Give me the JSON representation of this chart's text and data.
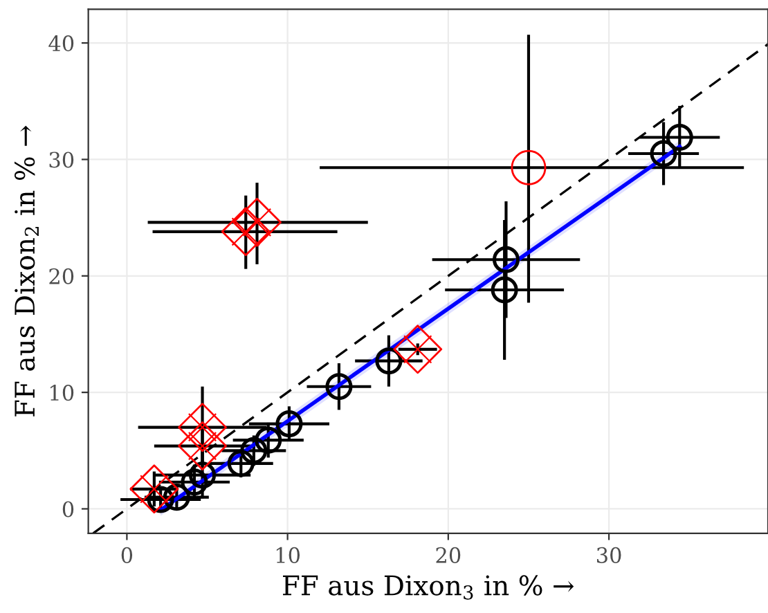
{
  "chart_data": {
    "type": "scatter",
    "xlabel": "FF aus Dixon$_{3}$ in % →",
    "ylabel": "FF aus Dixon$_{2}$ in % →",
    "xlim": [
      -2.4,
      39.9
    ],
    "ylim": [
      -2.1,
      42.9
    ],
    "xticks": [
      0,
      10,
      20,
      30
    ],
    "yticks": [
      0,
      10,
      20,
      30,
      40
    ],
    "grid": true,
    "legend": false,
    "series": [
      {
        "type": "line",
        "color": "#000000",
        "line_style": "dashed",
        "marker": "none",
        "x": [
          -2.1,
          39.9
        ],
        "values": [
          -2.1,
          39.9
        ]
      },
      {
        "type": "line",
        "color": "#0000ff",
        "line_style": "solid",
        "marker": "none",
        "x": [
          2.1,
          34.4
        ],
        "values": [
          -0.1,
          31.1
        ],
        "lower": [
          -0.6,
          30.6
        ],
        "upper": [
          0.4,
          31.6
        ]
      },
      {
        "color": "#000000",
        "marker": "circle",
        "x": [
          34.4,
          33.4,
          23.6,
          23.5,
          16.3,
          13.2,
          10.1,
          8.8,
          7.9,
          7.1,
          4.7,
          4.2,
          3.1,
          2.1
        ],
        "values": [
          31.9,
          30.5,
          21.4,
          18.8,
          12.7,
          10.5,
          7.3,
          5.9,
          5.0,
          3.9,
          2.9,
          2.3,
          1.0,
          0.8
        ],
        "xerrors": [
          2.5,
          2.2,
          4.6,
          3.7,
          2.1,
          2,
          2.5,
          2.2,
          2,
          2,
          3,
          2.2,
          2,
          2.5
        ],
        "errors": [
          2.7,
          2.7,
          5,
          6,
          2.2,
          2,
          1.5,
          1.5,
          1.3,
          1.2,
          2,
          1.5,
          1,
          0.8
        ]
      },
      {
        "color": "#ff0000",
        "marker": "diamond",
        "x": [
          1.7,
          4.7,
          4.7,
          7.4,
          8.1,
          18.1
        ],
        "values": [
          1.7,
          7.0,
          5.4,
          23.8,
          24.6,
          13.7
        ],
        "xerrors": [
          1.5,
          4,
          3,
          [
            1.6,
            13.1
          ],
          [
            1.3,
            15.0
          ],
          1.2
        ],
        "errors": [
          1.5,
          3.5,
          1.5,
          [
            20.6,
            26.9
          ],
          [
            21.0,
            28.0
          ],
          0.5
        ]
      },
      {
        "color": "#ff0000",
        "marker": "circle",
        "x": [
          25.0
        ],
        "values": [
          29.3
        ],
        "xerrors": [
          [
            12.0,
            38.4
          ]
        ],
        "errors": [
          [
            17.7,
            40.7
          ]
        ]
      }
    ]
  }
}
